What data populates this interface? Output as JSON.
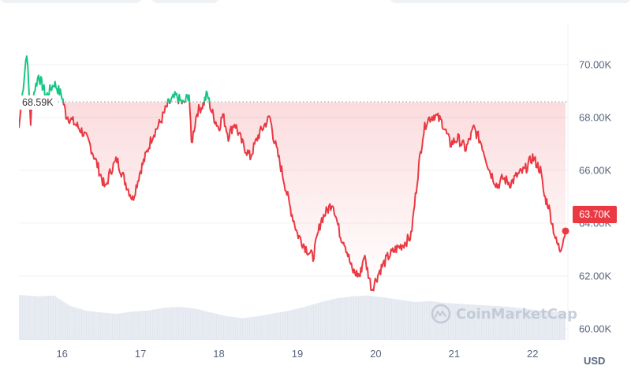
{
  "chart_data": {
    "type": "line",
    "currency": "USD",
    "y_ticks": [
      "70.00K",
      "68.00K",
      "66.00K",
      "64.00K",
      "62.00K",
      "60.00K"
    ],
    "y_tick_values": [
      70000,
      68000,
      66000,
      64000,
      62000,
      60000
    ],
    "x_ticks": [
      "16",
      "17",
      "18",
      "19",
      "20",
      "21",
      "22"
    ],
    "x_tick_values": [
      16,
      17,
      18,
      19,
      20,
      21,
      22
    ],
    "xlim": [
      15.45,
      22.45
    ],
    "ylim": [
      59550,
      71550
    ],
    "reference_value": 68590,
    "reference_label": "68.59K",
    "current_price": 63700,
    "current_price_label": "63.70K",
    "grid": true,
    "price_series": {
      "x": [
        15.45,
        15.55,
        15.6,
        15.62,
        15.7,
        15.75,
        15.8,
        15.9,
        16.0,
        16.05,
        16.15,
        16.25,
        16.35,
        16.45,
        16.55,
        16.62,
        16.7,
        16.8,
        16.9,
        17.0,
        17.05,
        17.15,
        17.25,
        17.35,
        17.45,
        17.55,
        17.62,
        17.65,
        17.72,
        17.8,
        17.85,
        17.9,
        17.95,
        18.0,
        18.05,
        18.12,
        18.2,
        18.3,
        18.4,
        18.5,
        18.6,
        18.65,
        18.7,
        18.8,
        18.9,
        19.0,
        19.1,
        19.2,
        19.3,
        19.45,
        19.55,
        19.6,
        19.7,
        19.8,
        19.85,
        19.95,
        20.05,
        20.15,
        20.25,
        20.35,
        20.45,
        20.55,
        20.6,
        20.65,
        20.75,
        20.85,
        20.95,
        21.05,
        21.15,
        21.25,
        21.35,
        21.45,
        21.55,
        21.62,
        21.72,
        21.8,
        21.9,
        22.0,
        22.1,
        22.15,
        22.2,
        22.3,
        22.35,
        22.42
      ],
      "y": [
        67600,
        70500,
        67800,
        68700,
        69600,
        69200,
        68800,
        69300,
        68800,
        68100,
        67800,
        67500,
        67000,
        66200,
        65300,
        66000,
        66400,
        65600,
        64900,
        66000,
        66400,
        67300,
        67800,
        68500,
        68800,
        68500,
        68900,
        67000,
        68200,
        68500,
        68900,
        68300,
        67900,
        67600,
        68100,
        67300,
        67800,
        67000,
        66500,
        67300,
        67800,
        68000,
        67200,
        66000,
        64700,
        63600,
        63100,
        62700,
        64100,
        64800,
        63500,
        63300,
        62200,
        62000,
        62800,
        61500,
        62200,
        62700,
        63000,
        63200,
        63500,
        66200,
        67300,
        67900,
        68100,
        67800,
        67000,
        67200,
        66800,
        67600,
        67000,
        66000,
        65400,
        65700,
        65500,
        65800,
        66000,
        66500,
        66000,
        65000,
        64700,
        63300,
        63000,
        63700
      ]
    },
    "volume_series": {
      "x": [
        15.45,
        15.7,
        15.9,
        16.1,
        16.3,
        16.5,
        16.7,
        16.9,
        17.1,
        17.3,
        17.5,
        17.7,
        17.9,
        18.1,
        18.3,
        18.5,
        18.7,
        18.9,
        19.1,
        19.3,
        19.5,
        19.7,
        19.9,
        20.1,
        20.3,
        20.5,
        20.7,
        20.9,
        21.1,
        21.3,
        21.5,
        21.7,
        21.9,
        22.1,
        22.3,
        22.42
      ],
      "v": [
        0.95,
        0.92,
        0.94,
        0.72,
        0.62,
        0.58,
        0.55,
        0.6,
        0.62,
        0.68,
        0.7,
        0.66,
        0.58,
        0.5,
        0.46,
        0.5,
        0.56,
        0.62,
        0.7,
        0.8,
        0.88,
        0.92,
        0.94,
        0.9,
        0.85,
        0.8,
        0.82,
        0.78,
        0.76,
        0.74,
        0.72,
        0.7,
        0.66,
        0.62,
        0.6,
        0.58
      ]
    }
  },
  "colors": {
    "up": "#16c784",
    "down": "#ea3943",
    "grid": "#eef0f4",
    "tick": "#58667e",
    "volume": "#dde3ec"
  },
  "ui": {
    "currency_label": "USD",
    "watermark_text": "CoinMarketCap",
    "watermark_icon": "coinmarketcap-logo-icon"
  }
}
